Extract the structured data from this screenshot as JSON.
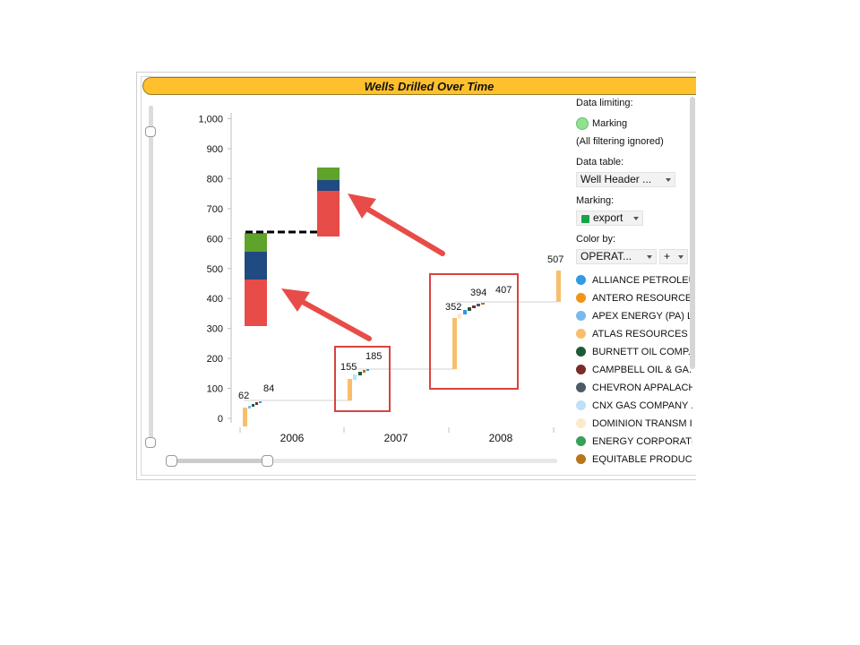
{
  "panel": {
    "title": "Wells Drilled Over Time"
  },
  "chart_data": {
    "type": "bar",
    "title": "Wells Drilled Over Time",
    "y_ticks": [
      "1,000",
      "900",
      "800",
      "700",
      "600",
      "500",
      "400",
      "300",
      "200",
      "100",
      "0"
    ],
    "x_categories": [
      "2006",
      "2007",
      "2008"
    ],
    "cumulative_labels": [
      {
        "label": "62",
        "value": 62
      },
      {
        "label": "84",
        "value": 84
      },
      {
        "label": "155",
        "value": 155
      },
      {
        "label": "185",
        "value": 185
      },
      {
        "label": "352",
        "value": 352
      },
      {
        "label": "394",
        "value": 394
      },
      {
        "label": "407",
        "value": 407
      },
      {
        "label": "507",
        "value": 507
      }
    ],
    "ylim": [
      0,
      1000
    ]
  },
  "legend": {
    "data_limiting_label": "Data limiting:",
    "marking_item": "Marking",
    "filter_note": "(All filtering ignored)",
    "data_table_label": "Data table:",
    "data_table_value": "Well Header ...",
    "marking_label": "Marking:",
    "marking_value": "export",
    "marking_color": "#1aa34a",
    "color_by_label": "Color by:",
    "color_by_value": "OPERAT...",
    "plus_label": "+",
    "items": [
      {
        "label": "ALLIANCE PETROLEUM",
        "color": "#2f9be6"
      },
      {
        "label": "ANTERO RESOURCES...",
        "color": "#f29418"
      },
      {
        "label": "APEX ENERGY (PA) LLC",
        "color": "#7ab9ec"
      },
      {
        "label": "ATLAS RESOURCES LLC",
        "color": "#f8be6c"
      },
      {
        "label": "BURNETT OIL COMP...",
        "color": "#1f5a35"
      },
      {
        "label": "CAMPBELL OIL & GA...",
        "color": "#7a2b2b"
      },
      {
        "label": "CHEVRON APPALACH...",
        "color": "#4c5a66"
      },
      {
        "label": "CNX GAS COMPANY ...",
        "color": "#bfe0f7"
      },
      {
        "label": "DOMINION TRANSM I...",
        "color": "#faeacb"
      },
      {
        "label": "ENERGY CORPORATI...",
        "color": "#37a05a"
      },
      {
        "label": "EQUITABLE PRODUC...",
        "color": "#b8761c"
      }
    ]
  }
}
